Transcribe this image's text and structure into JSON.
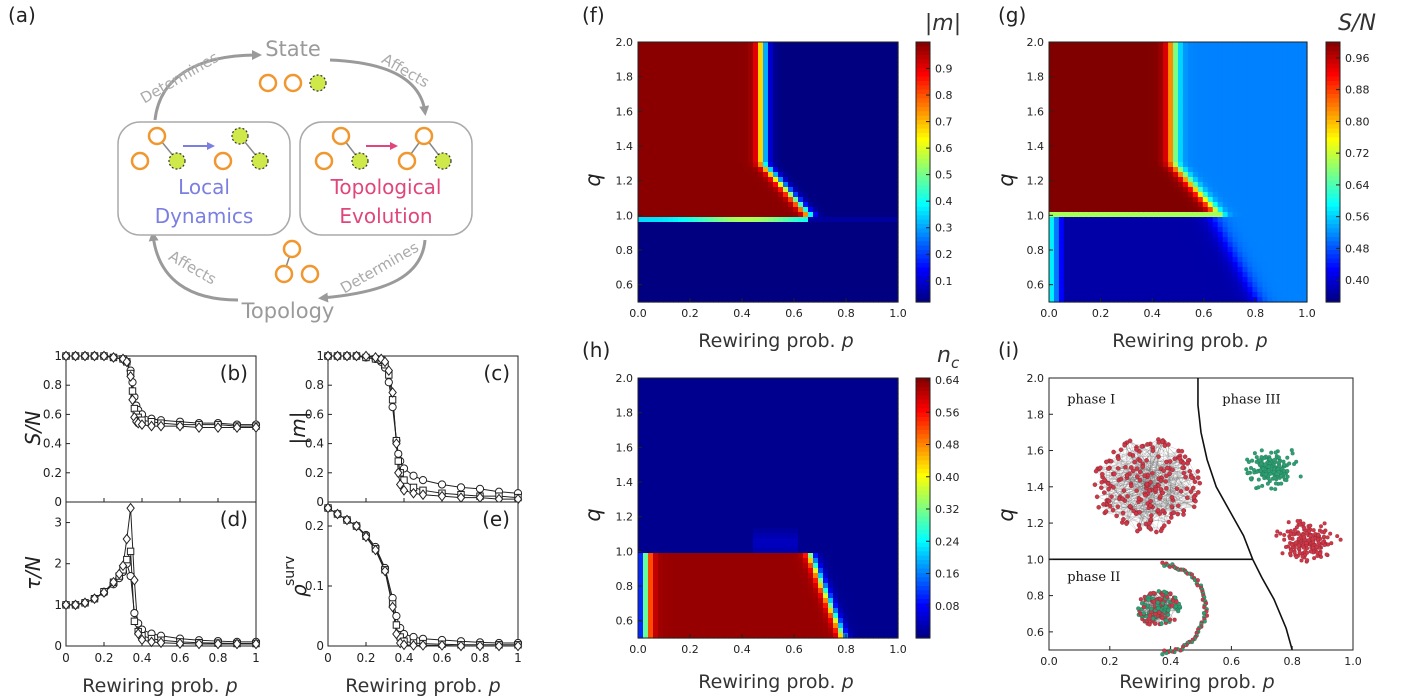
{
  "panel_labels": {
    "a": "(a)",
    "b": "(b)",
    "c": "(c)",
    "d": "(d)",
    "e": "(e)",
    "f": "(f)",
    "g": "(g)",
    "h": "(h)",
    "i": "(i)"
  },
  "diagram": {
    "state": "State",
    "topology": "Topology",
    "determines": "Determines",
    "affects": "Affects",
    "local_line1": "Local",
    "local_line2": "Dynamics",
    "topo_line1": "Topological",
    "topo_line2": "Evolution",
    "colors": {
      "gray": "#9a9a9a",
      "local": "#7b7fe0",
      "topo": "#e0467c",
      "node_orange": "#f0972f",
      "node_green": "#cfe84a"
    }
  },
  "xlabel": "Rewiring prob. p",
  "xlabel_text": "Rewiring prob.",
  "xlabel_var": "p",
  "ylabel_q": "q",
  "phase_labels": {
    "I": "phase I",
    "II": "phase II",
    "III": "phase III"
  },
  "colorbar_titles": {
    "f": "|m|",
    "g": "S/N",
    "h": "n_c",
    "h_main": "n",
    "h_sub": "c"
  },
  "chart_data": [
    {
      "id": "b",
      "type": "line",
      "ylabel": "S/N",
      "xlim": [
        0,
        1
      ],
      "ylim": [
        0,
        1
      ],
      "xticks": [
        0,
        0.2,
        0.4,
        0.6,
        0.8,
        1
      ],
      "xticklabels": [
        "0",
        "0.2",
        "0.4",
        "0.6",
        "0.8",
        "1"
      ],
      "yticks": [
        0,
        0.2,
        0.4,
        0.6,
        0.8,
        1
      ],
      "yticklabels": [
        "0",
        "0.2",
        "0.4",
        "0.6",
        "0.8",
        "1"
      ],
      "series": [
        {
          "marker": "circle",
          "x": [
            0,
            0.05,
            0.1,
            0.15,
            0.2,
            0.25,
            0.3,
            0.32,
            0.34,
            0.35,
            0.36,
            0.37,
            0.38,
            0.4,
            0.45,
            0.5,
            0.6,
            0.7,
            0.8,
            0.9,
            1.0
          ],
          "y": [
            1,
            1,
            1,
            1,
            1,
            0.99,
            0.98,
            0.96,
            0.9,
            0.82,
            0.72,
            0.66,
            0.63,
            0.6,
            0.57,
            0.56,
            0.55,
            0.54,
            0.54,
            0.53,
            0.53
          ]
        },
        {
          "marker": "square",
          "x": [
            0,
            0.05,
            0.1,
            0.15,
            0.2,
            0.25,
            0.3,
            0.32,
            0.34,
            0.35,
            0.36,
            0.37,
            0.38,
            0.4,
            0.45,
            0.5,
            0.6,
            0.7,
            0.8,
            0.9,
            1.0
          ],
          "y": [
            1,
            1,
            1,
            1,
            1,
            0.99,
            0.98,
            0.96,
            0.88,
            0.76,
            0.64,
            0.6,
            0.58,
            0.56,
            0.55,
            0.54,
            0.53,
            0.53,
            0.53,
            0.52,
            0.52
          ]
        },
        {
          "marker": "diamond",
          "x": [
            0,
            0.05,
            0.1,
            0.15,
            0.2,
            0.25,
            0.3,
            0.32,
            0.34,
            0.35,
            0.36,
            0.37,
            0.38,
            0.4,
            0.45,
            0.5,
            0.6,
            0.7,
            0.8,
            0.9,
            1.0
          ],
          "y": [
            1,
            1,
            1,
            1,
            1,
            0.99,
            0.98,
            0.96,
            0.86,
            0.7,
            0.58,
            0.55,
            0.54,
            0.53,
            0.52,
            0.52,
            0.52,
            0.51,
            0.51,
            0.51,
            0.51
          ]
        }
      ]
    },
    {
      "id": "c",
      "type": "line",
      "ylabel": "|m|",
      "xlim": [
        0,
        1
      ],
      "ylim": [
        0,
        1
      ],
      "xticks": [
        0,
        0.2,
        0.4,
        0.6,
        0.8,
        1
      ],
      "xticklabels": [
        "0",
        "0.2",
        "0.4",
        "0.6",
        "0.8",
        "1"
      ],
      "yticks": [
        0,
        0.2,
        0.4,
        0.6,
        0.8,
        1
      ],
      "yticklabels": [
        "0",
        "0.2",
        "0.4",
        "0.6",
        "0.8",
        "1"
      ],
      "series": [
        {
          "marker": "circle",
          "x": [
            0,
            0.05,
            0.1,
            0.15,
            0.2,
            0.25,
            0.28,
            0.3,
            0.32,
            0.34,
            0.36,
            0.37,
            0.38,
            0.4,
            0.45,
            0.5,
            0.6,
            0.7,
            0.8,
            0.9,
            1.0
          ],
          "y": [
            1,
            1,
            1,
            1,
            0.99,
            0.98,
            0.96,
            0.92,
            0.82,
            0.65,
            0.42,
            0.33,
            0.28,
            0.23,
            0.18,
            0.15,
            0.12,
            0.1,
            0.09,
            0.07,
            0.06
          ]
        },
        {
          "marker": "square",
          "x": [
            0,
            0.05,
            0.1,
            0.15,
            0.2,
            0.25,
            0.28,
            0.3,
            0.32,
            0.34,
            0.36,
            0.37,
            0.38,
            0.4,
            0.45,
            0.5,
            0.6,
            0.7,
            0.8,
            0.9,
            1.0
          ],
          "y": [
            1,
            1,
            1,
            1,
            0.99,
            0.98,
            0.97,
            0.94,
            0.87,
            0.7,
            0.42,
            0.28,
            0.2,
            0.15,
            0.1,
            0.08,
            0.06,
            0.05,
            0.04,
            0.04,
            0.03
          ]
        },
        {
          "marker": "diamond",
          "x": [
            0,
            0.05,
            0.1,
            0.15,
            0.2,
            0.25,
            0.28,
            0.3,
            0.32,
            0.34,
            0.36,
            0.37,
            0.38,
            0.4,
            0.45,
            0.5,
            0.6,
            0.7,
            0.8,
            0.9,
            1.0
          ],
          "y": [
            1,
            1,
            1,
            1,
            1,
            0.99,
            0.98,
            0.96,
            0.9,
            0.75,
            0.4,
            0.2,
            0.12,
            0.08,
            0.06,
            0.05,
            0.04,
            0.03,
            0.03,
            0.02,
            0.02
          ]
        }
      ]
    },
    {
      "id": "d",
      "type": "line",
      "ylabel": "τ/N",
      "xlim": [
        0,
        1
      ],
      "ylim": [
        0,
        3.5
      ],
      "xticks": [
        0,
        0.2,
        0.4,
        0.6,
        0.8,
        1
      ],
      "xticklabels": [
        "0",
        "0.2",
        "0.4",
        "0.6",
        "0.8",
        "1"
      ],
      "yticks": [
        0,
        1,
        2,
        3
      ],
      "yticklabels": [
        "0",
        "1",
        "2",
        "3"
      ],
      "series": [
        {
          "marker": "circle",
          "x": [
            0,
            0.05,
            0.1,
            0.15,
            0.2,
            0.25,
            0.28,
            0.3,
            0.32,
            0.34,
            0.36,
            0.38,
            0.4,
            0.45,
            0.5,
            0.6,
            0.7,
            0.8,
            0.9,
            1.0
          ],
          "y": [
            1.0,
            1.0,
            1.05,
            1.15,
            1.3,
            1.5,
            1.65,
            1.8,
            2.0,
            1.7,
            0.8,
            0.55,
            0.4,
            0.3,
            0.25,
            0.18,
            0.14,
            0.12,
            0.1,
            0.1
          ]
        },
        {
          "marker": "square",
          "x": [
            0,
            0.05,
            0.1,
            0.15,
            0.2,
            0.25,
            0.28,
            0.3,
            0.32,
            0.34,
            0.36,
            0.38,
            0.4,
            0.45,
            0.5,
            0.6,
            0.7,
            0.8,
            0.9,
            1.0
          ],
          "y": [
            1.0,
            1.0,
            1.05,
            1.15,
            1.32,
            1.55,
            1.7,
            1.85,
            2.1,
            2.3,
            0.6,
            0.35,
            0.25,
            0.18,
            0.14,
            0.1,
            0.08,
            0.07,
            0.06,
            0.06
          ]
        },
        {
          "marker": "diamond",
          "x": [
            0,
            0.05,
            0.1,
            0.15,
            0.2,
            0.25,
            0.28,
            0.3,
            0.32,
            0.34,
            0.36,
            0.38,
            0.4,
            0.45,
            0.5,
            0.6,
            0.7,
            0.8,
            0.9,
            1.0
          ],
          "y": [
            1.0,
            1.0,
            1.05,
            1.15,
            1.3,
            1.55,
            1.75,
            1.95,
            2.6,
            3.35,
            1.6,
            0.3,
            0.15,
            0.1,
            0.08,
            0.06,
            0.05,
            0.05,
            0.05,
            0.05
          ]
        }
      ]
    },
    {
      "id": "e",
      "type": "line",
      "ylabel": "ρ^surv",
      "xlim": [
        0,
        1
      ],
      "ylim": [
        0,
        0.24
      ],
      "xticks": [
        0,
        0.2,
        0.4,
        0.6,
        0.8,
        1
      ],
      "xticklabels": [
        "0",
        "0.2",
        "0.4",
        "0.6",
        "0.8",
        "1"
      ],
      "yticks": [
        0,
        0.1,
        0.2
      ],
      "yticklabels": [
        "0",
        "0.1",
        "0.2"
      ],
      "series": [
        {
          "marker": "circle",
          "x": [
            0,
            0.05,
            0.1,
            0.15,
            0.2,
            0.25,
            0.3,
            0.34,
            0.36,
            0.38,
            0.4,
            0.45,
            0.5,
            0.6,
            0.7,
            0.8,
            0.9,
            1.0
          ],
          "y": [
            0.23,
            0.22,
            0.21,
            0.2,
            0.185,
            0.165,
            0.13,
            0.08,
            0.05,
            0.03,
            0.02,
            0.015,
            0.012,
            0.01,
            0.008,
            0.006,
            0.005,
            0.005
          ]
        },
        {
          "marker": "square",
          "x": [
            0,
            0.05,
            0.1,
            0.15,
            0.2,
            0.25,
            0.3,
            0.34,
            0.36,
            0.38,
            0.4,
            0.45,
            0.5,
            0.6,
            0.7,
            0.8,
            0.9,
            1.0
          ],
          "y": [
            0.23,
            0.22,
            0.21,
            0.2,
            0.183,
            0.162,
            0.127,
            0.07,
            0.035,
            0.015,
            0.008,
            0.005,
            0.004,
            0.003,
            0.002,
            0.002,
            0.002,
            0.002
          ]
        },
        {
          "marker": "diamond",
          "x": [
            0,
            0.05,
            0.1,
            0.15,
            0.2,
            0.25,
            0.3,
            0.34,
            0.36,
            0.38,
            0.4,
            0.45,
            0.5,
            0.6,
            0.7,
            0.8,
            0.9,
            1.0
          ],
          "y": [
            0.23,
            0.22,
            0.21,
            0.2,
            0.182,
            0.16,
            0.125,
            0.065,
            0.02,
            0.005,
            0.002,
            0.001,
            0.001,
            0.001,
            0.0,
            0.0,
            0.0,
            0.0
          ]
        }
      ]
    },
    {
      "id": "f",
      "type": "heatmap",
      "xlim": [
        0,
        1
      ],
      "ylim": [
        0.5,
        2.0
      ],
      "xticks": [
        0,
        0.2,
        0.4,
        0.6,
        0.8,
        1
      ],
      "xticklabels": [
        "0.0",
        "0.2",
        "0.4",
        "0.6",
        "0.8",
        "1.0"
      ],
      "yticks": [
        0.6,
        0.8,
        1.0,
        1.2,
        1.4,
        1.6,
        1.8,
        2.0
      ],
      "yticklabels": [
        "0.6",
        "0.8",
        "1.0",
        "1.2",
        "1.4",
        "1.6",
        "1.8",
        "2.0"
      ],
      "colorbar": {
        "min": 0.02,
        "max": 1.0,
        "ticks": [
          0.1,
          0.2,
          0.3,
          0.4,
          0.5,
          0.6,
          0.7,
          0.8,
          0.9
        ],
        "ticklabels": [
          "0.1",
          "0.2",
          "0.3",
          "0.4",
          "0.5",
          "0.6",
          "0.7",
          "0.8",
          "0.9"
        ]
      }
    },
    {
      "id": "g",
      "type": "heatmap",
      "xlim": [
        0,
        1
      ],
      "ylim": [
        0.5,
        2.0
      ],
      "xticks": [
        0,
        0.2,
        0.4,
        0.6,
        0.8,
        1
      ],
      "xticklabels": [
        "0.0",
        "0.2",
        "0.4",
        "0.6",
        "0.8",
        "1.0"
      ],
      "yticks": [
        0.6,
        0.8,
        1.0,
        1.2,
        1.4,
        1.6,
        1.8,
        2.0
      ],
      "yticklabels": [
        "0.6",
        "0.8",
        "1.0",
        "1.2",
        "1.4",
        "1.6",
        "1.8",
        "2.0"
      ],
      "colorbar": {
        "min": 0.345,
        "max": 1.0,
        "ticks": [
          0.4,
          0.48,
          0.56,
          0.64,
          0.72,
          0.8,
          0.88,
          0.96
        ],
        "ticklabels": [
          "0.40",
          "0.48",
          "0.56",
          "0.64",
          "0.72",
          "0.80",
          "0.88",
          "0.96"
        ]
      }
    },
    {
      "id": "h",
      "type": "heatmap",
      "xlim": [
        0,
        1
      ],
      "ylim": [
        0.5,
        2.0
      ],
      "xticks": [
        0,
        0.2,
        0.4,
        0.6,
        0.8,
        1
      ],
      "xticklabels": [
        "0.0",
        "0.2",
        "0.4",
        "0.6",
        "0.8",
        "1.0"
      ],
      "yticks": [
        0.6,
        0.8,
        1.0,
        1.2,
        1.4,
        1.6,
        1.8,
        2.0
      ],
      "yticklabels": [
        "0.6",
        "0.8",
        "1.0",
        "1.2",
        "1.4",
        "1.6",
        "1.8",
        "2.0"
      ],
      "colorbar": {
        "min": 0.0,
        "max": 0.645,
        "ticks": [
          0.08,
          0.16,
          0.24,
          0.32,
          0.4,
          0.48,
          0.56,
          0.64
        ],
        "ticklabels": [
          "0.08",
          "0.16",
          "0.24",
          "0.32",
          "0.40",
          "0.48",
          "0.56",
          "0.64"
        ]
      }
    },
    {
      "id": "i",
      "type": "scatter",
      "xlim": [
        0,
        1
      ],
      "ylim": [
        0.5,
        2.0
      ],
      "xticks": [
        0,
        0.2,
        0.4,
        0.6,
        0.8,
        1
      ],
      "xticklabels": [
        "0.0",
        "0.2",
        "0.4",
        "0.6",
        "0.8",
        "1.0"
      ],
      "yticks": [
        0.6,
        0.8,
        1.0,
        1.2,
        1.4,
        1.6,
        1.8,
        2.0
      ],
      "yticklabels": [
        "0.6",
        "0.8",
        "1.0",
        "1.2",
        "1.4",
        "1.6",
        "1.8",
        "2.0"
      ],
      "boundaries": [
        {
          "x": [
            0,
            0.67
          ],
          "y": [
            1.0,
            1.0
          ]
        },
        {
          "x": [
            0.49,
            0.49,
            0.5,
            0.52,
            0.55,
            0.6,
            0.64,
            0.67,
            0.7,
            0.74,
            0.78,
            0.8
          ],
          "y": [
            2.0,
            1.85,
            1.7,
            1.55,
            1.4,
            1.25,
            1.13,
            1.0,
            0.9,
            0.78,
            0.62,
            0.5
          ]
        }
      ],
      "colors": {
        "red": "#d03848",
        "green": "#2e9f73"
      }
    }
  ]
}
